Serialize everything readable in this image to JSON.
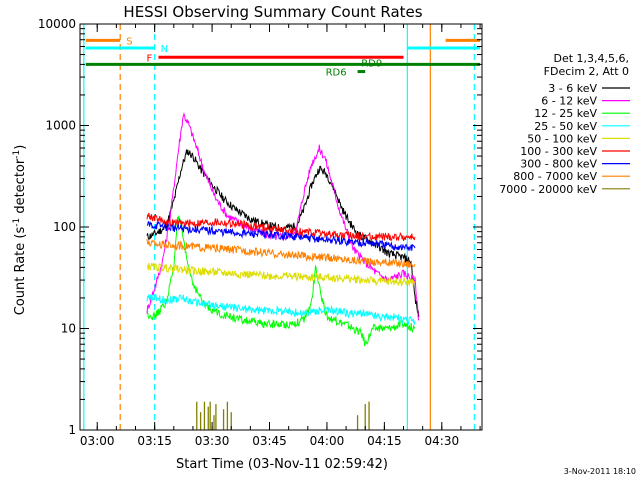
{
  "chart_data": {
    "type": "line",
    "title": "HESSI Observing Summary Count Rates",
    "xlabel": "Start Time (03-Nov-11 02:59:42)",
    "ylabel": "Count Rate (s",
    "ylabel_sup1": "-1",
    "ylabel_mid": " detector",
    "ylabel_sup2": "-1",
    "ylabel_end": ")",
    "y_scale": "log",
    "ylim": [
      1,
      10000
    ],
    "xlim_minutes": [
      0,
      100
    ],
    "x_ticks": [
      {
        "m": 0,
        "label": "03:00"
      },
      {
        "m": 15,
        "label": "03:15"
      },
      {
        "m": 30,
        "label": "03:30"
      },
      {
        "m": 45,
        "label": "03:45"
      },
      {
        "m": 60,
        "label": "04:00"
      },
      {
        "m": 75,
        "label": "04:15"
      },
      {
        "m": 90,
        "label": "04:30"
      }
    ],
    "y_ticks": [
      {
        "v": 1,
        "label": "1"
      },
      {
        "v": 10,
        "label": "10"
      },
      {
        "v": 100,
        "label": "100"
      },
      {
        "v": 1000,
        "label": "1000"
      },
      {
        "v": 10000,
        "label": "10000"
      }
    ],
    "legend_title_1": "Det 1,3,4,5,6,",
    "legend_title_2": "FDecim 2, Att 0",
    "legend_position": "right",
    "series": [
      {
        "name": "3 - 6 keV",
        "color": "#000000",
        "points": [
          [
            13,
            80
          ],
          [
            15,
            85
          ],
          [
            18,
            100
          ],
          [
            20,
            180
          ],
          [
            22,
            380
          ],
          [
            23.5,
            560
          ],
          [
            25,
            500
          ],
          [
            27,
            370
          ],
          [
            30,
            260
          ],
          [
            33,
            190
          ],
          [
            36,
            150
          ],
          [
            40,
            120
          ],
          [
            44,
            105
          ],
          [
            48,
            97
          ],
          [
            52,
            102
          ],
          [
            54,
            150
          ],
          [
            56,
            260
          ],
          [
            58,
            380
          ],
          [
            60,
            330
          ],
          [
            62,
            230
          ],
          [
            64,
            150
          ],
          [
            66,
            110
          ],
          [
            68,
            85
          ],
          [
            72,
            70
          ],
          [
            76,
            55
          ],
          [
            80,
            50
          ],
          [
            82,
            45
          ],
          [
            83,
            20
          ],
          [
            84,
            13
          ]
        ]
      },
      {
        "name": "6 - 12 keV",
        "color": "#ff00ff",
        "points": [
          [
            13,
            15
          ],
          [
            15,
            25
          ],
          [
            17,
            45
          ],
          [
            19,
            120
          ],
          [
            21,
            500
          ],
          [
            22.5,
            1300
          ],
          [
            24,
            1000
          ],
          [
            26,
            600
          ],
          [
            28,
            350
          ],
          [
            31,
            190
          ],
          [
            34,
            130
          ],
          [
            38,
            105
          ],
          [
            42,
            90
          ],
          [
            46,
            80
          ],
          [
            50,
            80
          ],
          [
            52,
            95
          ],
          [
            54,
            220
          ],
          [
            56,
            420
          ],
          [
            58,
            590
          ],
          [
            59.5,
            480
          ],
          [
            61,
            300
          ],
          [
            63,
            160
          ],
          [
            65,
            95
          ],
          [
            67,
            60
          ],
          [
            70,
            45
          ],
          [
            73,
            35
          ],
          [
            76,
            30
          ],
          [
            80,
            35
          ],
          [
            83,
            30
          ],
          [
            84,
            12
          ]
        ]
      },
      {
        "name": "12 - 25 keV",
        "color": "#00ff00",
        "points": [
          [
            13,
            14
          ],
          [
            15,
            13
          ],
          [
            18,
            18
          ],
          [
            20,
            40
          ],
          [
            21,
            130
          ],
          [
            22,
            100
          ],
          [
            23,
            55
          ],
          [
            25,
            28
          ],
          [
            28,
            17
          ],
          [
            32,
            14
          ],
          [
            38,
            12
          ],
          [
            44,
            11
          ],
          [
            50,
            11
          ],
          [
            54,
            12
          ],
          [
            56,
            18
          ],
          [
            57,
            40
          ],
          [
            58,
            25
          ],
          [
            60,
            13
          ],
          [
            65,
            11
          ],
          [
            69,
            9
          ],
          [
            70,
            7
          ],
          [
            72,
            10
          ],
          [
            76,
            10
          ],
          [
            80,
            11
          ],
          [
            83,
            10
          ]
        ]
      },
      {
        "name": "25 - 50 keV",
        "color": "#00ffff",
        "points": [
          [
            13,
            20
          ],
          [
            18,
            19
          ],
          [
            22,
            20
          ],
          [
            26,
            18
          ],
          [
            30,
            17
          ],
          [
            36,
            16
          ],
          [
            42,
            15
          ],
          [
            48,
            15
          ],
          [
            54,
            14
          ],
          [
            58,
            15
          ],
          [
            62,
            15
          ],
          [
            66,
            14
          ],
          [
            70,
            14
          ],
          [
            74,
            13
          ],
          [
            78,
            13
          ],
          [
            80,
            12
          ],
          [
            83,
            12
          ]
        ]
      },
      {
        "name": "50 - 100 keV",
        "color": "#dddd00",
        "points": [
          [
            13,
            41
          ],
          [
            16,
            40
          ],
          [
            20,
            39
          ],
          [
            25,
            37
          ],
          [
            30,
            36
          ],
          [
            35,
            35
          ],
          [
            40,
            34
          ],
          [
            45,
            33
          ],
          [
            50,
            33
          ],
          [
            55,
            32
          ],
          [
            60,
            32
          ],
          [
            65,
            31
          ],
          [
            70,
            30
          ],
          [
            75,
            29
          ],
          [
            80,
            29
          ],
          [
            83,
            28
          ]
        ]
      },
      {
        "name": "100 - 300 keV",
        "color": "#ff0000",
        "points": [
          [
            13,
            130
          ],
          [
            16,
            120
          ],
          [
            19,
            110
          ],
          [
            23,
            108
          ],
          [
            27,
            110
          ],
          [
            31,
            112
          ],
          [
            35,
            108
          ],
          [
            40,
            103
          ],
          [
            45,
            97
          ],
          [
            50,
            92
          ],
          [
            55,
            88
          ],
          [
            60,
            85
          ],
          [
            65,
            82
          ],
          [
            70,
            81
          ],
          [
            75,
            80
          ],
          [
            80,
            80
          ],
          [
            83,
            80
          ]
        ]
      },
      {
        "name": "300 - 800 keV",
        "color": "#0000ff",
        "points": [
          [
            13,
            105
          ],
          [
            17,
            102
          ],
          [
            20,
            98
          ],
          [
            25,
            95
          ],
          [
            30,
            92
          ],
          [
            35,
            88
          ],
          [
            40,
            86
          ],
          [
            45,
            84
          ],
          [
            50,
            82
          ],
          [
            55,
            78
          ],
          [
            60,
            75
          ],
          [
            65,
            72
          ],
          [
            70,
            70
          ],
          [
            74,
            68
          ],
          [
            76,
            65
          ],
          [
            80,
            63
          ],
          [
            83,
            62
          ]
        ]
      },
      {
        "name": "800 - 7000 keV",
        "color": "#ff8000",
        "points": [
          [
            13,
            70
          ],
          [
            16,
            68
          ],
          [
            20,
            66
          ],
          [
            25,
            64
          ],
          [
            30,
            62
          ],
          [
            35,
            60
          ],
          [
            40,
            58
          ],
          [
            45,
            55
          ],
          [
            50,
            53
          ],
          [
            55,
            51
          ],
          [
            60,
            50
          ],
          [
            65,
            48
          ],
          [
            70,
            46
          ],
          [
            75,
            45
          ],
          [
            80,
            44
          ],
          [
            83,
            43
          ]
        ]
      },
      {
        "name": "7000 - 20000 keV",
        "color": "#808000",
        "points": []
      }
    ],
    "markers": [
      {
        "label": "S",
        "color": "#ff8000",
        "y": 6900,
        "segments": [
          [
            -3,
            6
          ],
          [
            91,
            100
          ]
        ]
      },
      {
        "label": "N",
        "color": "#00ffff",
        "y": 5800,
        "segments": [
          [
            -3,
            15
          ],
          [
            81,
            100
          ]
        ]
      },
      {
        "label": "F",
        "color": "#ff0000",
        "y": 4700,
        "segments": [
          [
            16,
            80
          ]
        ]
      },
      {
        "label": "RD9",
        "color": "#008000",
        "y": 4000,
        "segments": [
          [
            -3,
            100
          ]
        ]
      },
      {
        "label": "RD6",
        "color": "#008000",
        "y": 3400,
        "segments": [
          [
            68,
            70
          ]
        ]
      }
    ],
    "vlines": [
      {
        "m": 6,
        "color": "#ff8000",
        "dashed": true
      },
      {
        "m": 15,
        "color": "#00ffff",
        "dashed": true
      },
      {
        "m": 81,
        "color": "#00ffff",
        "dashed": false
      },
      {
        "m": 87,
        "color": "#ff8000",
        "dashed": false
      },
      {
        "m": 98.5,
        "color": "#00ffff",
        "dashed": true
      },
      {
        "m": -3.5,
        "color": "#00ffff",
        "dashed": false
      }
    ]
  },
  "footer_date": "3-Nov-2011 18:10"
}
